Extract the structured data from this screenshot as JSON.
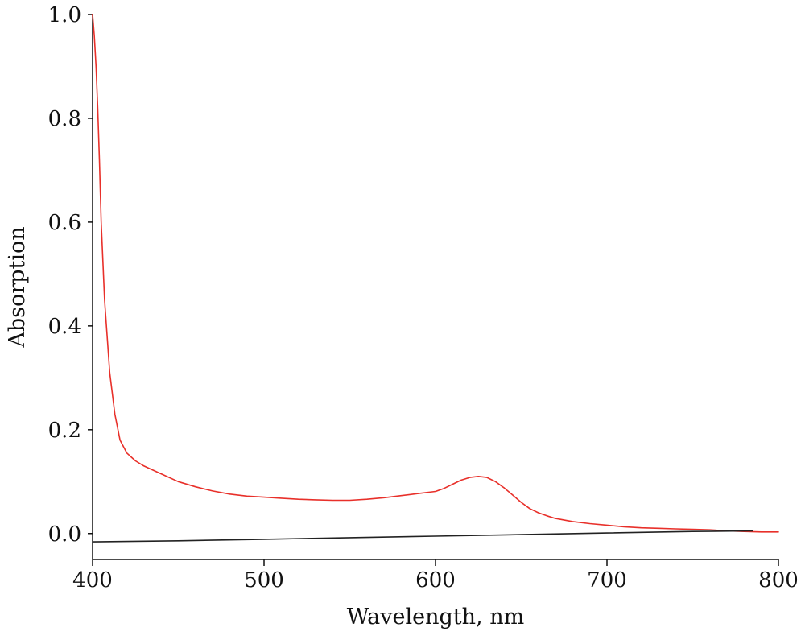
{
  "chart_data": {
    "type": "line",
    "title": "",
    "xlabel": "Wavelength, nm",
    "ylabel": "Absorption",
    "xlim": [
      400,
      800
    ],
    "ylim": [
      -0.05,
      1.0
    ],
    "xticks": [
      400,
      500,
      600,
      700,
      800
    ],
    "yticks": [
      0.0,
      0.2,
      0.4,
      0.6,
      0.8,
      1.0
    ],
    "xtick_labels": [
      "400",
      "500",
      "600",
      "700",
      "800"
    ],
    "ytick_labels": [
      "0.0",
      "0.2",
      "0.4",
      "0.6",
      "0.8",
      "1.0"
    ],
    "grid": false,
    "legend": "none",
    "series": [
      {
        "color": "#e8302a",
        "x": [
          400,
          401,
          402,
          403,
          404,
          405,
          407,
          410,
          413,
          416,
          420,
          425,
          430,
          440,
          450,
          460,
          470,
          480,
          490,
          500,
          510,
          520,
          530,
          540,
          550,
          560,
          570,
          580,
          590,
          600,
          605,
          610,
          615,
          620,
          625,
          630,
          635,
          640,
          645,
          650,
          655,
          660,
          665,
          670,
          680,
          690,
          700,
          710,
          720,
          730,
          740,
          750,
          760,
          770,
          780,
          790,
          800
        ],
        "y": [
          1.0,
          0.96,
          0.9,
          0.82,
          0.72,
          0.6,
          0.45,
          0.31,
          0.23,
          0.18,
          0.155,
          0.14,
          0.13,
          0.115,
          0.1,
          0.09,
          0.082,
          0.076,
          0.072,
          0.07,
          0.068,
          0.066,
          0.065,
          0.064,
          0.064,
          0.066,
          0.069,
          0.073,
          0.077,
          0.081,
          0.087,
          0.095,
          0.103,
          0.108,
          0.11,
          0.108,
          0.1,
          0.088,
          0.074,
          0.06,
          0.048,
          0.04,
          0.034,
          0.029,
          0.023,
          0.019,
          0.016,
          0.013,
          0.011,
          0.01,
          0.009,
          0.008,
          0.007,
          0.005,
          0.004,
          0.003,
          0.003
        ]
      },
      {
        "color": "#222222",
        "x": [
          400,
          450,
          500,
          550,
          600,
          650,
          700,
          750,
          785
        ],
        "y": [
          -0.016,
          -0.014,
          -0.011,
          -0.008,
          -0.005,
          -0.002,
          0.001,
          0.004,
          0.005
        ]
      }
    ]
  }
}
